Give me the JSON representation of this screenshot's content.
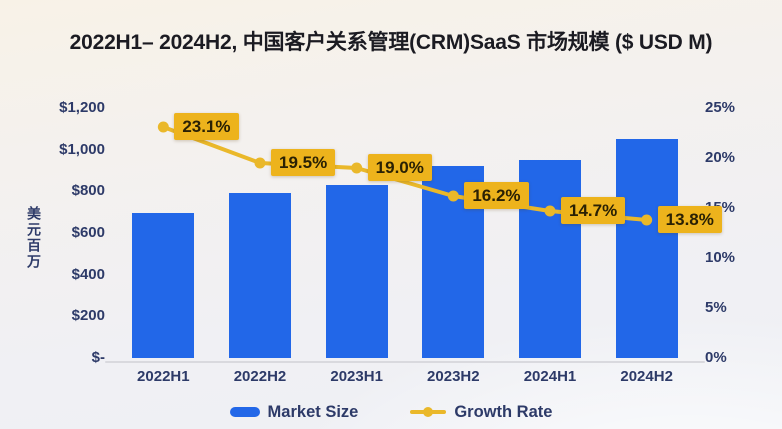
{
  "title": "2022H1– 2024H2, 中国客户关系管理(CRM)SaaS 市场规模 ($ USD M)",
  "chart_data": {
    "type": "bar+line combo",
    "title": "2022H1– 2024H2, 中国客户关系管理(CRM)SaaS 市场规模 ($ USD M)",
    "categories": [
      "2022H1",
      "2022H2",
      "2023H1",
      "2023H2",
      "2024H1",
      "2024H2"
    ],
    "series": [
      {
        "name": "Market Size",
        "type": "bar",
        "axis": "left",
        "values": [
          695,
          790,
          830,
          920,
          950,
          1050
        ]
      },
      {
        "name": "Growth Rate",
        "type": "line",
        "axis": "right",
        "values": [
          23.1,
          19.5,
          19.0,
          16.2,
          14.7,
          13.8
        ],
        "labels": [
          "23.1%",
          "19.5%",
          "19.0%",
          "16.2%",
          "14.7%",
          "13.8%"
        ]
      }
    ],
    "left_axis": {
      "unit_label": "美元百万",
      "ticks": [
        "$1,200",
        "$1,000",
        "$800",
        "$600",
        "$400",
        "$200",
        "$-"
      ],
      "values": [
        1200,
        1000,
        800,
        600,
        400,
        200,
        0
      ],
      "ylim": [
        0,
        1200
      ]
    },
    "right_axis": {
      "ticks": [
        "25%",
        "20%",
        "15%",
        "10%",
        "5%",
        "0%"
      ],
      "values": [
        25,
        20,
        15,
        10,
        5,
        0
      ],
      "ylim": [
        0,
        25
      ]
    },
    "legend": [
      "Market Size",
      "Growth Rate"
    ],
    "legend_position": "bottom",
    "grid": false,
    "colors": {
      "bar": "#2267e8",
      "line": "#eab82a",
      "label_bg": "#edb31c",
      "label_text": "#2a2104",
      "axis_text": "#2d3a68",
      "title_text": "#1b1b22",
      "axis_line": "#d9d9de"
    }
  }
}
